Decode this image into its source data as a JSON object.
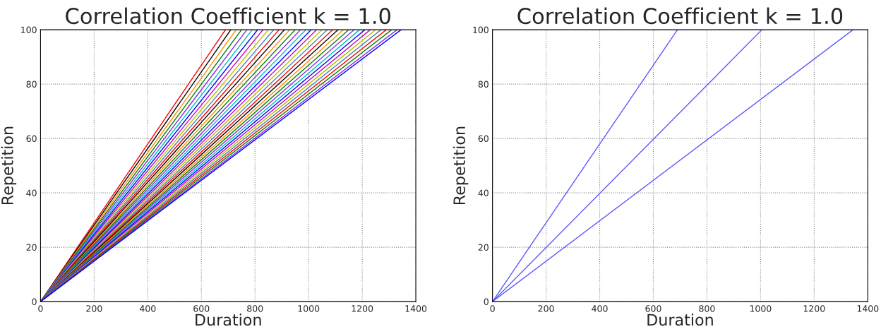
{
  "chart_data": [
    {
      "type": "line",
      "title": "Correlation Coefficient k = 1.0",
      "xlabel": "Duration",
      "ylabel": "Repetition",
      "xlim": [
        0,
        1400
      ],
      "xticks": [
        0,
        200,
        400,
        600,
        800,
        1000,
        1200,
        1400
      ],
      "ylim": [
        0,
        100
      ],
      "yticks": [
        0,
        20,
        40,
        60,
        80,
        100
      ],
      "grid": true,
      "marker": "none",
      "line_style": "solid",
      "series": [
        {
          "color": "#ff0000",
          "x": [
            0,
            690
          ],
          "values": [
            0,
            100
          ]
        },
        {
          "color": "#000000",
          "x": [
            0,
            710
          ],
          "values": [
            0,
            100
          ]
        },
        {
          "color": "#ff8c00",
          "x": [
            0,
            730
          ],
          "values": [
            0,
            100
          ]
        },
        {
          "color": "#008000",
          "x": [
            0,
            750
          ],
          "values": [
            0,
            100
          ]
        },
        {
          "color": "#8a2be2",
          "x": [
            0,
            770
          ],
          "values": [
            0,
            100
          ]
        },
        {
          "color": "#00bfbf",
          "x": [
            0,
            790
          ],
          "values": [
            0,
            100
          ]
        },
        {
          "color": "#0000ff",
          "x": [
            0,
            810
          ],
          "values": [
            0,
            100
          ]
        },
        {
          "color": "#bf00bf",
          "x": [
            0,
            830
          ],
          "values": [
            0,
            100
          ]
        },
        {
          "color": "#bfbf00",
          "x": [
            0,
            850
          ],
          "values": [
            0,
            100
          ]
        },
        {
          "color": "#4682b4",
          "x": [
            0,
            870
          ],
          "values": [
            0,
            100
          ]
        },
        {
          "color": "#ff0000",
          "x": [
            0,
            890
          ],
          "values": [
            0,
            100
          ]
        },
        {
          "color": "#000000",
          "x": [
            0,
            910
          ],
          "values": [
            0,
            100
          ]
        },
        {
          "color": "#ff8c00",
          "x": [
            0,
            930
          ],
          "values": [
            0,
            100
          ]
        },
        {
          "color": "#008000",
          "x": [
            0,
            950
          ],
          "values": [
            0,
            100
          ]
        },
        {
          "color": "#8a2be2",
          "x": [
            0,
            970
          ],
          "values": [
            0,
            100
          ]
        },
        {
          "color": "#00bfbf",
          "x": [
            0,
            990
          ],
          "values": [
            0,
            100
          ]
        },
        {
          "color": "#0000ff",
          "x": [
            0,
            1010
          ],
          "values": [
            0,
            100
          ]
        },
        {
          "color": "#bf00bf",
          "x": [
            0,
            1030
          ],
          "values": [
            0,
            100
          ]
        },
        {
          "color": "#bfbf00",
          "x": [
            0,
            1050
          ],
          "values": [
            0,
            100
          ]
        },
        {
          "color": "#4682b4",
          "x": [
            0,
            1070
          ],
          "values": [
            0,
            100
          ]
        },
        {
          "color": "#ff0000",
          "x": [
            0,
            1090
          ],
          "values": [
            0,
            100
          ]
        },
        {
          "color": "#000000",
          "x": [
            0,
            1110
          ],
          "values": [
            0,
            100
          ]
        },
        {
          "color": "#ff8c00",
          "x": [
            0,
            1130
          ],
          "values": [
            0,
            100
          ]
        },
        {
          "color": "#008000",
          "x": [
            0,
            1150
          ],
          "values": [
            0,
            100
          ]
        },
        {
          "color": "#8a2be2",
          "x": [
            0,
            1170
          ],
          "values": [
            0,
            100
          ]
        },
        {
          "color": "#00bfbf",
          "x": [
            0,
            1190
          ],
          "values": [
            0,
            100
          ]
        },
        {
          "color": "#0000ff",
          "x": [
            0,
            1210
          ],
          "values": [
            0,
            100
          ]
        },
        {
          "color": "#bf00bf",
          "x": [
            0,
            1230
          ],
          "values": [
            0,
            100
          ]
        },
        {
          "color": "#bfbf00",
          "x": [
            0,
            1250
          ],
          "values": [
            0,
            100
          ]
        },
        {
          "color": "#4682b4",
          "x": [
            0,
            1270
          ],
          "values": [
            0,
            100
          ]
        },
        {
          "color": "#ff0000",
          "x": [
            0,
            1290
          ],
          "values": [
            0,
            100
          ]
        },
        {
          "color": "#008000",
          "x": [
            0,
            1310
          ],
          "values": [
            0,
            100
          ]
        },
        {
          "color": "#8a2be2",
          "x": [
            0,
            1330
          ],
          "values": [
            0,
            100
          ]
        },
        {
          "color": "#0000ff",
          "x": [
            0,
            1345
          ],
          "values": [
            0,
            100
          ]
        }
      ]
    },
    {
      "type": "line",
      "title": "Correlation Coefficient k = 1.0",
      "xlabel": "Duration",
      "ylabel": "Repetition",
      "xlim": [
        0,
        1400
      ],
      "xticks": [
        0,
        200,
        400,
        600,
        800,
        1000,
        1200,
        1400
      ],
      "ylim": [
        0,
        100
      ],
      "yticks": [
        0,
        20,
        40,
        60,
        80,
        100
      ],
      "grid": true,
      "marker": "none",
      "line_style": "solid",
      "series": [
        {
          "color": "#5a5aff",
          "x": [
            0,
            690
          ],
          "values": [
            0,
            100
          ]
        },
        {
          "color": "#5a5aff",
          "x": [
            0,
            1005
          ],
          "values": [
            0,
            100
          ]
        },
        {
          "color": "#5a5aff",
          "x": [
            0,
            1345
          ],
          "values": [
            0,
            100
          ]
        }
      ]
    }
  ]
}
